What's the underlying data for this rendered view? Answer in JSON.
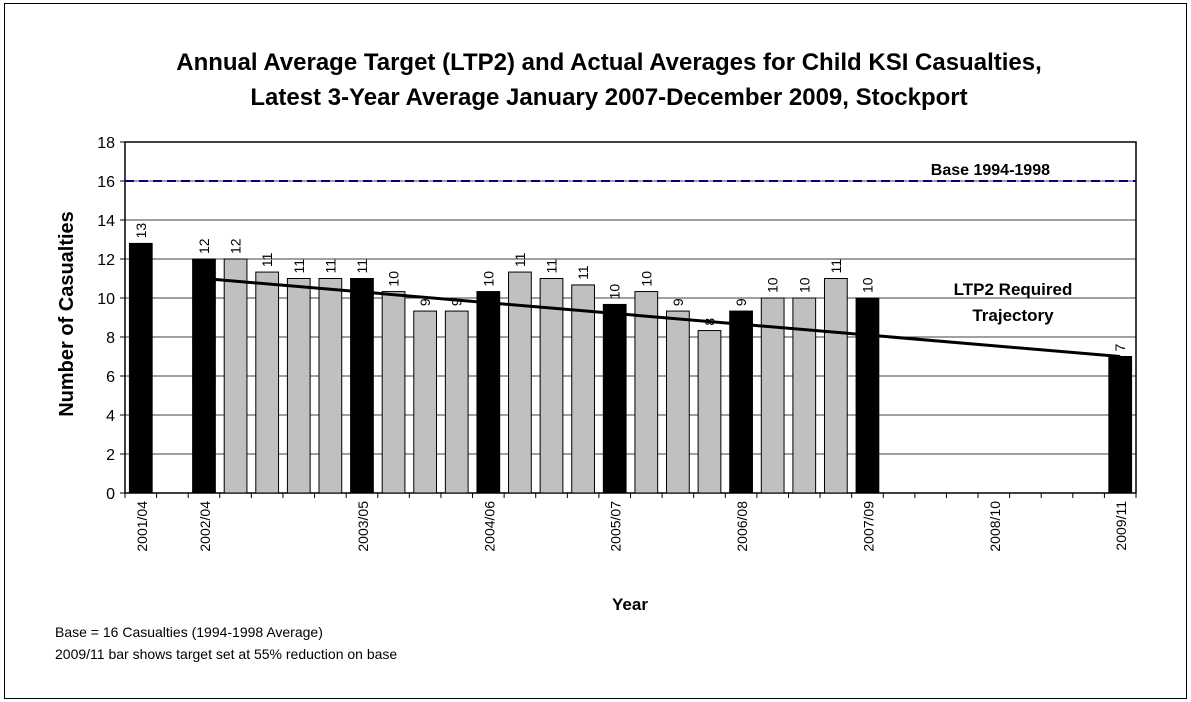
{
  "chart_data": {
    "type": "bar",
    "title": "Annual Average Target (LTP2) and Actual Averages for Child KSI Casualties,",
    "subtitle": "Latest 3-Year Average January 2007-December 2009, Stockport",
    "xlabel": "Year",
    "ylabel": "Number of Casualties",
    "ylim": [
      0,
      18
    ],
    "yticks": [
      0,
      2,
      4,
      6,
      8,
      10,
      12,
      14,
      16,
      18
    ],
    "grid": true,
    "categories": [
      "2001/04",
      "",
      "2002/04",
      "",
      "",
      "",
      "",
      "2003/05",
      "",
      "",
      "",
      "2004/06",
      "",
      "",
      "",
      "2005/07",
      "",
      "",
      "",
      "2006/08",
      "",
      "",
      "",
      "2007/09",
      "",
      "",
      "",
      "2008/10",
      "",
      "",
      "",
      "2009/11"
    ],
    "x_tick_labels": [
      "2001/04",
      "2002/04",
      "2003/05",
      "2004/06",
      "2005/07",
      "2006/08",
      "2007/09",
      "2008/10",
      "2009/11"
    ],
    "values": [
      12.8,
      null,
      12,
      12,
      11.33,
      11,
      11,
      11,
      10.33,
      9.33,
      9.33,
      10.33,
      11.33,
      11,
      10.67,
      9.67,
      10.33,
      9.33,
      8.33,
      9.33,
      10,
      10,
      11,
      10,
      null,
      null,
      null,
      null,
      null,
      null,
      null,
      7
    ],
    "data_labels": [
      "13",
      "",
      "12",
      "12",
      "11",
      "11",
      "11",
      "11",
      "10",
      "9",
      "9",
      "10",
      "11",
      "11",
      "11",
      "10",
      "10",
      "9",
      "8",
      "9",
      "10",
      "10",
      "11",
      "10",
      "",
      "",
      "",
      "",
      "",
      "",
      "",
      "7"
    ],
    "bar_kinds": [
      "annual",
      "",
      "annual",
      "rolling",
      "rolling",
      "rolling",
      "rolling",
      "annual",
      "rolling",
      "rolling",
      "rolling",
      "annual",
      "rolling",
      "rolling",
      "rolling",
      "annual",
      "rolling",
      "rolling",
      "rolling",
      "annual",
      "rolling",
      "rolling",
      "rolling",
      "annual",
      "",
      "",
      "",
      "",
      "",
      "",
      "",
      "annual"
    ],
    "base_line": {
      "label": "Base 1994-1998",
      "value": 16
    },
    "trajectory": {
      "label_line1": "LTP2 Required",
      "label_line2": "Trajectory",
      "start_index": 2,
      "start_value": 11,
      "end_index": 31,
      "end_value": 7
    },
    "colors": {
      "annual": "#000000",
      "rolling": "#c0c0c0",
      "base_line": "#000080",
      "trajectory": "#000000",
      "grid": "#000000"
    },
    "notes": [
      "Base = 16 Casualties (1994-1998 Average)",
      "2009/11 bar shows target set at 55% reduction on base"
    ]
  }
}
